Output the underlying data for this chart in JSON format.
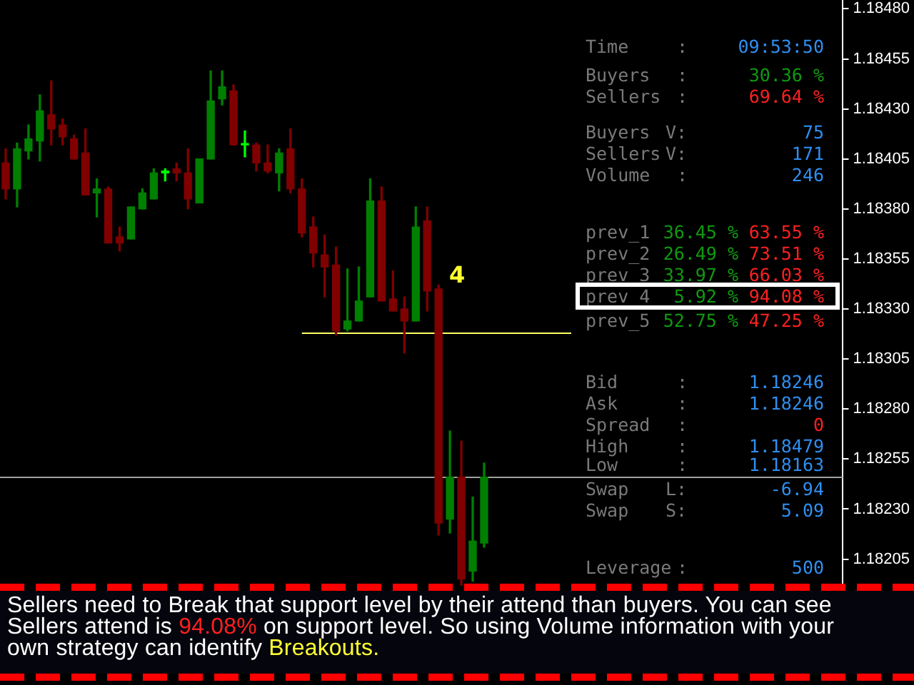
{
  "chart_data": {
    "type": "candlestick",
    "categories": [
      null,
      null,
      null,
      null,
      null,
      null,
      null,
      null,
      null,
      null,
      null,
      null,
      null,
      null,
      null,
      null,
      null,
      null,
      null,
      null,
      null,
      null,
      null,
      null,
      null,
      null,
      null,
      null,
      null,
      null,
      null,
      null,
      null,
      null,
      null,
      null,
      null,
      null,
      null,
      null,
      null,
      null,
      null,
      null,
      null,
      null,
      null,
      null,
      null,
      null,
      null,
      null,
      null,
      null,
      null,
      null,
      null,
      null,
      null,
      null,
      null,
      null,
      null,
      null,
      null,
      null,
      null,
      null,
      null,
      null,
      null,
      null,
      null,
      null
    ],
    "ohlc": [
      [
        1.18403,
        1.1841,
        1.18385,
        1.1839
      ],
      [
        1.1839,
        1.18413,
        1.18381,
        1.1841
      ],
      [
        1.18409,
        1.18422,
        1.18405,
        1.18415
      ],
      [
        1.18414,
        1.18437,
        1.18404,
        1.18429
      ],
      [
        1.18427,
        1.18444,
        1.18412,
        1.1842
      ],
      [
        1.18422,
        1.18425,
        1.18412,
        1.18416
      ],
      [
        1.18415,
        1.18417,
        1.18405,
        1.18405
      ],
      [
        1.18408,
        1.1842,
        1.18387,
        1.18387
      ],
      [
        1.18388,
        1.18395,
        1.18376,
        1.1839
      ],
      [
        1.1839,
        1.18391,
        1.18363,
        1.18363
      ],
      [
        1.18366,
        1.18371,
        1.18359,
        1.18363
      ],
      [
        1.18365,
        1.18381,
        1.18365,
        1.18381
      ],
      [
        1.1838,
        1.1839,
        1.1838,
        1.18388
      ],
      [
        1.18385,
        1.184,
        1.18385,
        1.18398
      ],
      [
        1.18398,
        1.184,
        1.18394,
        1.18399
      ],
      [
        1.184,
        1.18403,
        1.18394,
        1.18398
      ],
      [
        1.18398,
        1.1841,
        1.1838,
        1.18385
      ],
      [
        1.18383,
        1.18405,
        1.18383,
        1.18405
      ],
      [
        1.18405,
        1.18449,
        1.18405,
        1.18434
      ],
      [
        1.18435,
        1.18449,
        1.18432,
        1.18441
      ],
      [
        1.18439,
        1.18442,
        1.18412,
        1.18412
      ],
      [
        1.18412,
        1.18419,
        1.18406,
        1.18412
      ],
      [
        1.18412,
        1.18413,
        1.18399,
        1.18403
      ],
      [
        1.18403,
        1.18412,
        1.18398,
        1.18399
      ],
      [
        1.18398,
        1.1841,
        1.18389,
        1.18408
      ],
      [
        1.1841,
        1.1842,
        1.18388,
        1.1839
      ],
      [
        1.1839,
        1.18395,
        1.18366,
        1.18368
      ],
      [
        1.18371,
        1.18376,
        1.18351,
        1.18358
      ],
      [
        1.18357,
        1.18367,
        1.18336,
        1.18351
      ],
      [
        1.18352,
        1.18361,
        1.18317,
        1.18319
      ],
      [
        1.1832,
        1.1835,
        1.18319,
        1.18324
      ],
      [
        1.18324,
        1.18351,
        1.18324,
        1.18334
      ],
      [
        1.18336,
        1.18395,
        1.18336,
        1.18384
      ],
      [
        1.18384,
        1.18391,
        1.18334,
        1.18334
      ],
      [
        1.18335,
        1.18349,
        1.18329,
        1.18329
      ],
      [
        1.1833,
        1.18336,
        1.18308,
        1.18324
      ],
      [
        1.18324,
        1.18381,
        1.18324,
        1.18371
      ],
      [
        1.18374,
        1.18381,
        1.18329,
        1.18339
      ],
      [
        1.1834,
        1.18342,
        1.18217,
        1.18223
      ],
      [
        1.18225,
        1.18269,
        1.18218,
        1.18246
      ],
      [
        1.18246,
        1.18264,
        1.18192,
        1.18195
      ],
      [
        1.18199,
        1.18236,
        1.18194,
        1.18214
      ],
      [
        1.18213,
        1.18253,
        1.18211,
        1.18246
      ],
      null,
      null,
      null,
      null,
      null,
      null,
      null,
      null,
      null,
      null,
      null,
      null,
      null,
      null,
      null,
      null,
      null,
      null,
      null,
      null,
      null,
      null,
      null,
      null,
      null,
      null,
      null,
      null,
      null,
      null,
      null
    ],
    "colors": [
      "#800000",
      "#008000",
      "#008000",
      "#008000",
      "#800000",
      "#800000",
      "#800000",
      "#800000",
      "#008000",
      "#800000",
      "#800000",
      "#008000",
      "#008000",
      "#008000",
      "#00ff00",
      "#800000",
      "#800000",
      "#008000",
      "#008000",
      "#008000",
      "#800000",
      "#00ff00",
      "#800000",
      "#800000",
      "#008000",
      "#800000",
      "#800000",
      "#800000",
      "#800000",
      "#800000",
      "#008000",
      "#008000",
      "#008000",
      "#800000",
      "#800000",
      "#800000",
      "#008000",
      "#800000",
      "#800000",
      "#008000",
      "#800000",
      "#008000",
      "#008000",
      null,
      null,
      null,
      null,
      null,
      null,
      null,
      null,
      null,
      null,
      null,
      null,
      null,
      null,
      null,
      null,
      null,
      null,
      null,
      null,
      null,
      null,
      null,
      null,
      null,
      null,
      null,
      null,
      null,
      null,
      null
    ],
    "ylim": [
      1.18191,
      1.18484
    ],
    "yticks": [
      {
        "value": 1.18205,
        "label": "1.18205"
      },
      {
        "value": 1.1823,
        "label": "1.18230"
      },
      {
        "value": 1.18255,
        "label": "1.18255"
      },
      {
        "value": 1.1828,
        "label": "1.18280"
      },
      {
        "value": 1.18305,
        "label": "1.18305"
      },
      {
        "value": 1.1833,
        "label": "1.18330"
      },
      {
        "value": 1.18355,
        "label": "1.18355"
      },
      {
        "value": 1.1838,
        "label": "1.18380"
      },
      {
        "value": 1.18405,
        "label": "1.18405"
      },
      {
        "value": 1.1843,
        "label": "1.18430"
      },
      {
        "value": 1.18455,
        "label": "1.18455"
      },
      {
        "value": 1.1848,
        "label": "1.18480"
      }
    ],
    "tick_labels": "y",
    "grid": false,
    "legend": false,
    "ref_lines": [
      {
        "axis": "y",
        "value": 1.18318,
        "color": "#ffff66"
      },
      {
        "axis": "y",
        "value": 1.18246,
        "color": "#a0a0a0"
      }
    ],
    "annotations": [
      "Time",
      ":",
      "09:53:50",
      "Buyers",
      ":",
      "30.36 %",
      "Sellers",
      ":",
      "69.64 %",
      "Buyers",
      "V:",
      "75",
      "Sellers",
      "V:",
      "171",
      "Volume",
      ":",
      "246",
      "prev_1",
      "36.45 %",
      "63.55 %",
      "prev_2",
      "26.49 %",
      "73.51 %",
      "prev_3",
      "33.97 %",
      "66.03 %",
      "prev_4",
      "5.92 %",
      "94.08 %",
      "prev_5",
      "52.75 %",
      "47.25 %",
      "Bid",
      ":",
      "1.18246",
      "Ask",
      ":",
      "1.18246",
      "Spread",
      ":",
      "0",
      "High",
      ":",
      "1.18479",
      "Low",
      ":",
      "1.18163",
      "Swap",
      "L:",
      "-6.94",
      "Swap",
      "S:",
      "5.09",
      "Leverage",
      ":",
      "500",
      "Sellers need to Break that support level by their attend than buyers. You can see Sellers attend is",
      "94.08%",
      "on support level. So using Volume information with your own strategy can identify",
      "Breakouts.",
      "4"
    ]
  }
}
